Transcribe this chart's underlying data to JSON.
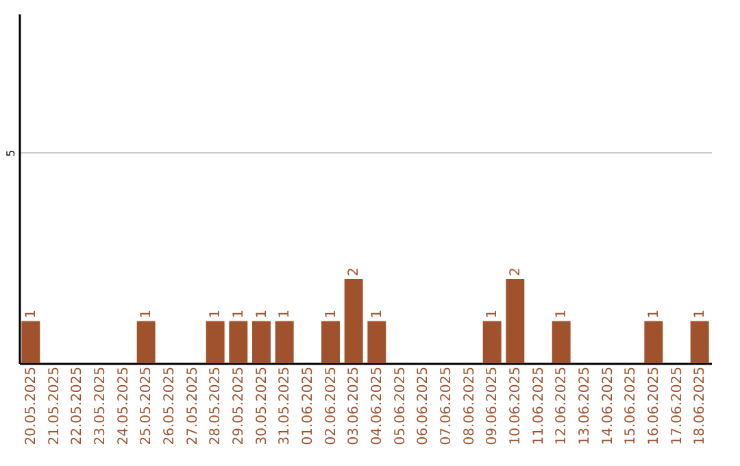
{
  "chart_data": {
    "type": "bar",
    "categories": [
      "20.05.2025",
      "21.05.2025",
      "22.05.2025",
      "23.05.2025",
      "24.05.2025",
      "25.05.2025",
      "26.05.2025",
      "27.05.2025",
      "28.05.2025",
      "29.05.2025",
      "30.05.2025",
      "31.05.2025",
      "01.06.2025",
      "02.06.2025",
      "03.06.2025",
      "04.06.2025",
      "05.06.2025",
      "06.06.2025",
      "07.06.2025",
      "08.06.2025",
      "09.06.2025",
      "10.06.2025",
      "11.06.2025",
      "12.06.2025",
      "13.06.2025",
      "14.06.2025",
      "15.06.2025",
      "16.06.2025",
      "17.06.2025",
      "18.06.2025"
    ],
    "values": [
      1,
      0,
      0,
      0,
      0,
      1,
      0,
      0,
      1,
      1,
      1,
      1,
      0,
      1,
      2,
      1,
      0,
      0,
      0,
      0,
      1,
      2,
      0,
      1,
      0,
      0,
      0,
      1,
      0,
      1
    ],
    "value_labels": [
      "1",
      null,
      null,
      null,
      null,
      "1",
      null,
      null,
      "1",
      "1",
      "1",
      "1",
      null,
      "1",
      "2",
      "1",
      null,
      null,
      null,
      null,
      "1",
      "2",
      null,
      "1",
      null,
      null,
      null,
      "1",
      null,
      "1"
    ],
    "color": "#a0522d",
    "ylim": [
      0,
      8.3
    ],
    "yticks": [
      5
    ],
    "grid": "y"
  }
}
